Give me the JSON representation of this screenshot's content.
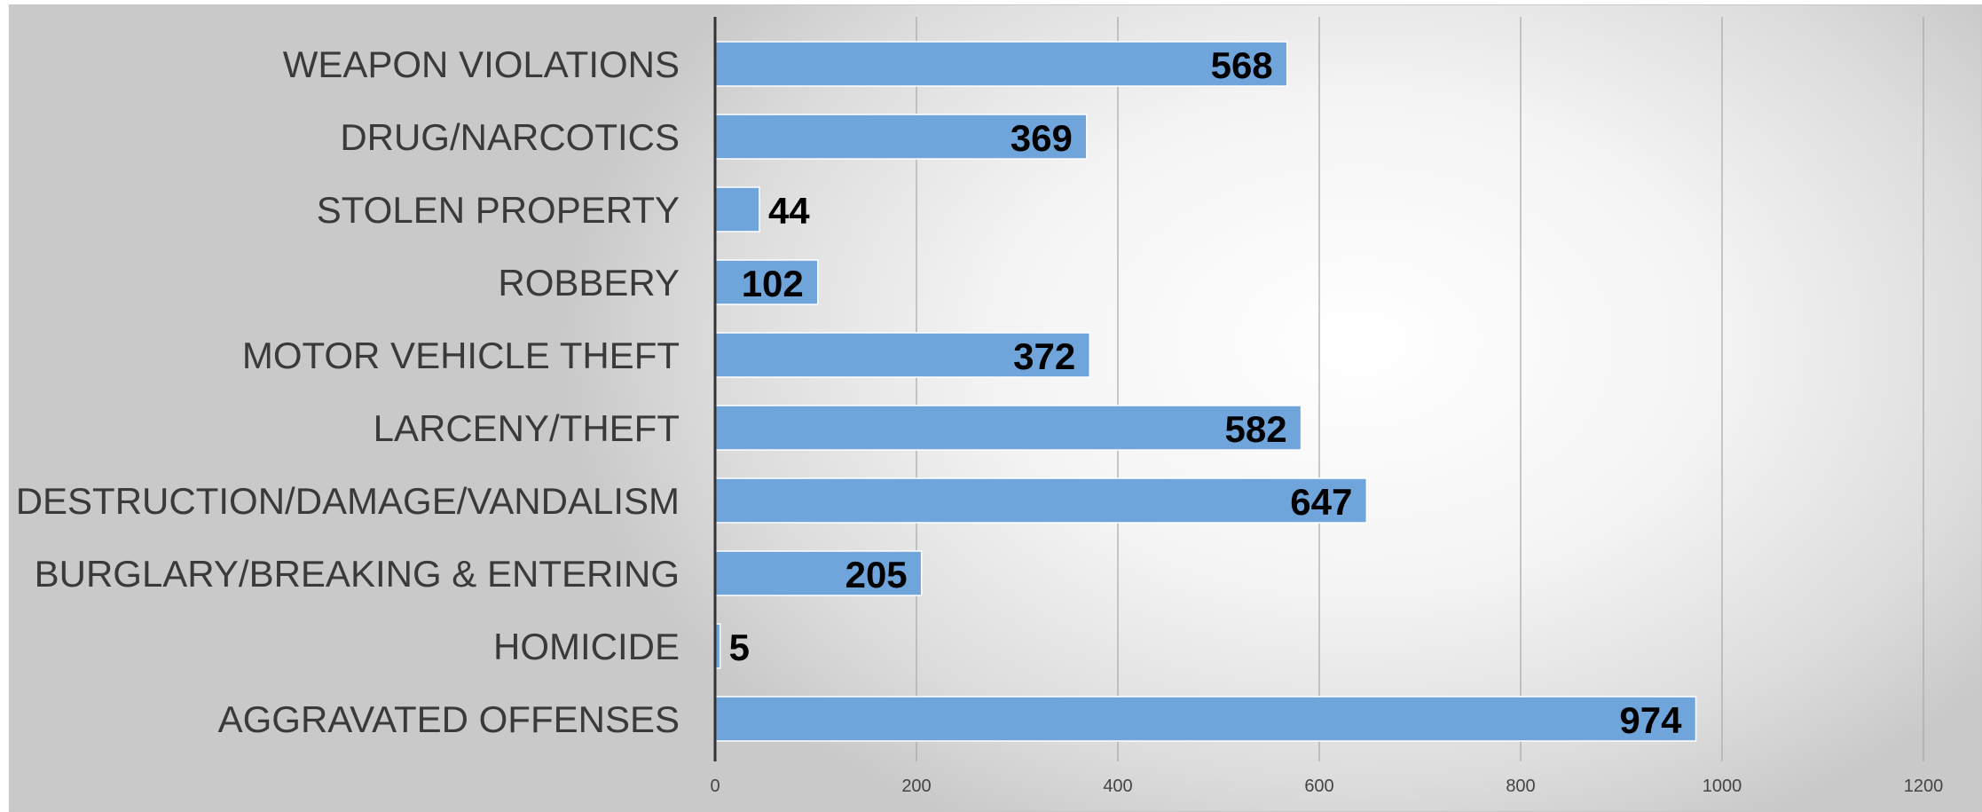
{
  "chart_data": {
    "type": "bar",
    "orientation": "horizontal",
    "categories": [
      "WEAPON VIOLATIONS",
      "DRUG/NARCOTICS",
      "STOLEN PROPERTY",
      "ROBBERY",
      "MOTOR VEHICLE THEFT",
      "LARCENY/THEFT",
      "DESTRUCTION/DAMAGE/VANDALISM",
      "BURGLARY/BREAKING & ENTERING",
      "HOMICIDE",
      "AGGRAVATED OFFENSES"
    ],
    "values": [
      568,
      369,
      44,
      102,
      372,
      582,
      647,
      205,
      5,
      974
    ],
    "value_labels": [
      "568",
      "369",
      "44",
      "102",
      "372",
      "582",
      "647",
      "205",
      "5",
      "974"
    ],
    "xlim": [
      0,
      1200
    ],
    "xticks": [
      "0",
      "200",
      "400",
      "600",
      "800",
      "1000",
      "1200"
    ],
    "grid": true,
    "legend": "none",
    "colors": {
      "bar": "#6fa5da",
      "bar_edge": "#ffffff",
      "gridline": "#a8a8a8",
      "axis": "#333333"
    }
  }
}
